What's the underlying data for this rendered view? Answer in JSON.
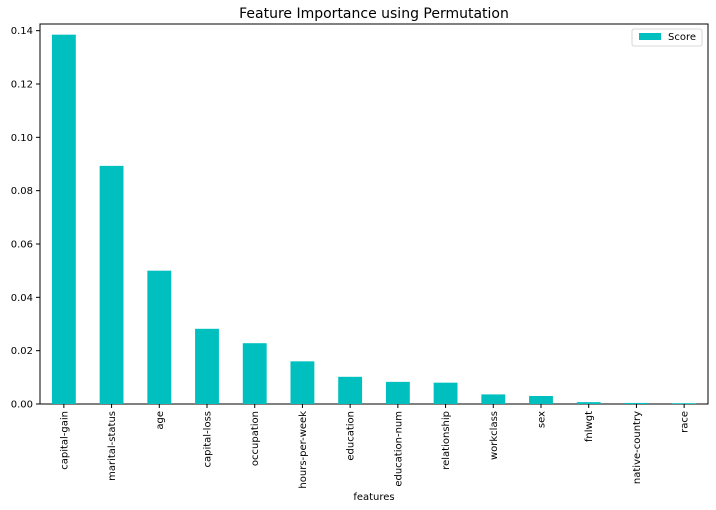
{
  "chart_data": {
    "type": "bar",
    "title": "Feature Importance using Permutation",
    "xlabel": "features",
    "ylabel": "",
    "categories": [
      "capital-gain",
      "marital-status",
      "age",
      "capital-loss",
      "occupation",
      "hours-per-week",
      "education",
      "education-num",
      "relationship",
      "workclass",
      "sex",
      "fnlwgt",
      "native-country",
      "race"
    ],
    "series": [
      {
        "name": "Score",
        "color": "#00BFBF",
        "values": [
          0.1385,
          0.0893,
          0.05,
          0.0282,
          0.0228,
          0.016,
          0.0102,
          0.0083,
          0.008,
          0.0036,
          0.003,
          0.0007,
          0.0004,
          0.0003
        ]
      }
    ],
    "ylim": [
      0,
      0.1425
    ],
    "yticks": [
      0.0,
      0.02,
      0.04,
      0.06,
      0.08,
      0.1,
      0.12,
      0.14
    ],
    "ytick_labels": [
      "0.00",
      "0.02",
      "0.04",
      "0.06",
      "0.08",
      "0.10",
      "0.12",
      "0.14"
    ],
    "legend": "top-right",
    "grid": false
  }
}
